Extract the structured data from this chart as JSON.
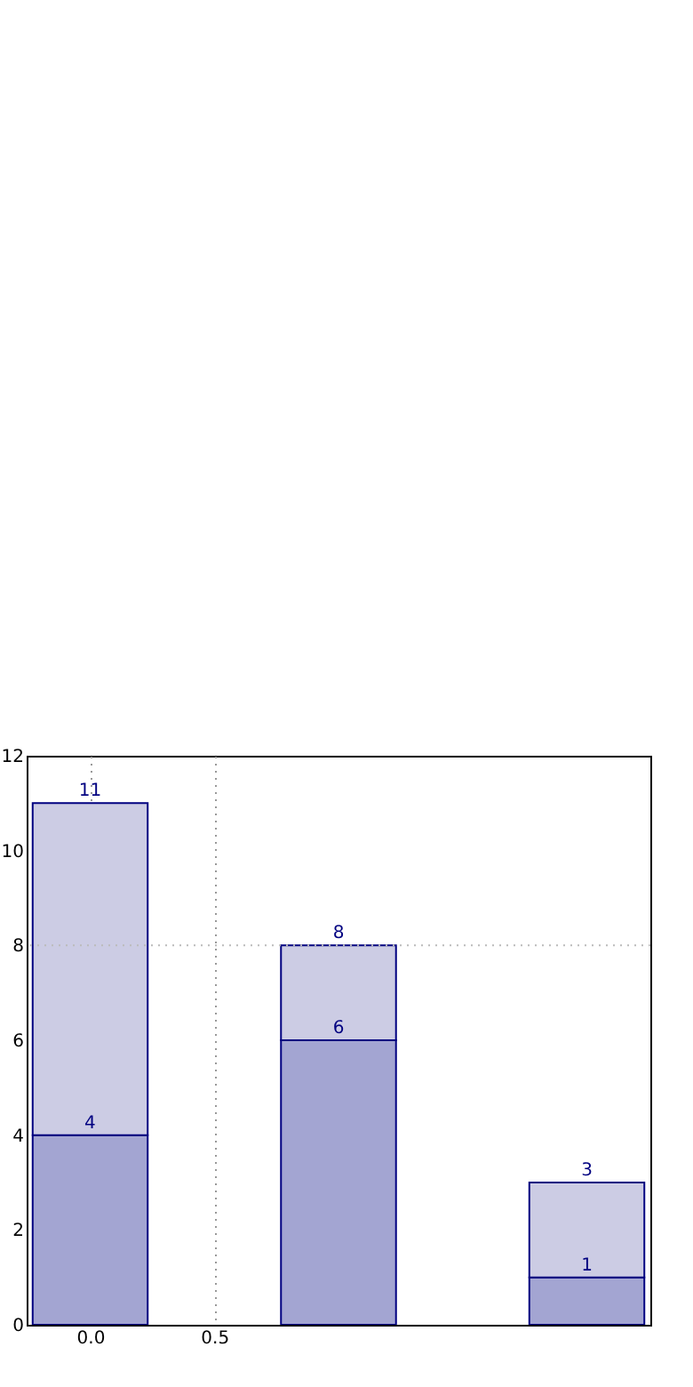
{
  "chart_data": {
    "type": "bar",
    "x": [
      0,
      1,
      2
    ],
    "stacked": true,
    "series": [
      {
        "color": "#a3a5d2",
        "values": [
          4,
          6,
          1
        ],
        "value_labels": [
          "4",
          "6",
          "1"
        ]
      },
      {
        "color": "#ccccE4",
        "values": [
          7,
          2,
          2
        ]
      }
    ],
    "totals": [
      "11",
      "8",
      "3"
    ],
    "xlim": [
      -0.22,
      2.22
    ],
    "xticks": [
      {
        "value": 0,
        "label": "0.0"
      },
      {
        "value": 0.5,
        "label": "0.5"
      }
    ],
    "ylim": [
      0,
      12
    ],
    "yticks": [
      0,
      2,
      4,
      6,
      8,
      10,
      12
    ],
    "grid": "x",
    "ref_lines": [
      {
        "axis": "y",
        "value": 8,
        "color": "#bbbbbb",
        "line_style": "dotted"
      }
    ]
  }
}
